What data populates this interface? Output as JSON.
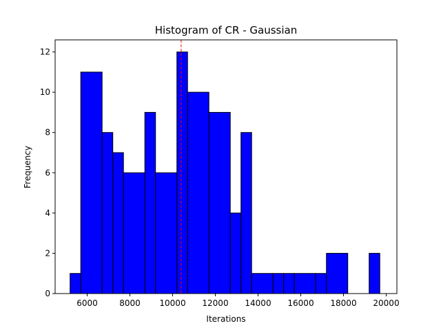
{
  "chart_data": {
    "type": "bar",
    "title": "Histogram of CR - Gaussian",
    "xlabel": "Iterations",
    "ylabel": "Frequency",
    "xlim": [
      4500,
      20500
    ],
    "ylim": [
      0,
      12.6
    ],
    "xticks": [
      6000,
      8000,
      10000,
      12000,
      14000,
      16000,
      18000,
      20000
    ],
    "yticks": [
      0,
      2,
      4,
      6,
      8,
      10,
      12
    ],
    "bins": [
      {
        "start": 5200,
        "end": 5700,
        "count": 1
      },
      {
        "start": 5700,
        "end": 6700,
        "count": 11
      },
      {
        "start": 6700,
        "end": 7200,
        "count": 8
      },
      {
        "start": 7200,
        "end": 7700,
        "count": 7
      },
      {
        "start": 7700,
        "end": 8700,
        "count": 6
      },
      {
        "start": 8700,
        "end": 9200,
        "count": 9
      },
      {
        "start": 9200,
        "end": 10200,
        "count": 6
      },
      {
        "start": 10200,
        "end": 10700,
        "count": 12
      },
      {
        "start": 10700,
        "end": 11700,
        "count": 10
      },
      {
        "start": 11700,
        "end": 12700,
        "count": 9
      },
      {
        "start": 12700,
        "end": 13200,
        "count": 4
      },
      {
        "start": 13200,
        "end": 13700,
        "count": 8
      },
      {
        "start": 13700,
        "end": 14700,
        "count": 1
      },
      {
        "start": 14700,
        "end": 15200,
        "count": 1
      },
      {
        "start": 15200,
        "end": 15700,
        "count": 1
      },
      {
        "start": 15700,
        "end": 16700,
        "count": 1
      },
      {
        "start": 16700,
        "end": 17200,
        "count": 1
      },
      {
        "start": 17200,
        "end": 18200,
        "count": 2
      },
      {
        "start": 18200,
        "end": 19200,
        "count": 0
      },
      {
        "start": 19200,
        "end": 19700,
        "count": 2
      }
    ],
    "reference_line": {
      "x": 10400,
      "style": "dashed",
      "color": "#ff0000"
    },
    "bar_color": "#0000ff",
    "edge_color": "#000000",
    "grid": false,
    "legend": "none"
  }
}
